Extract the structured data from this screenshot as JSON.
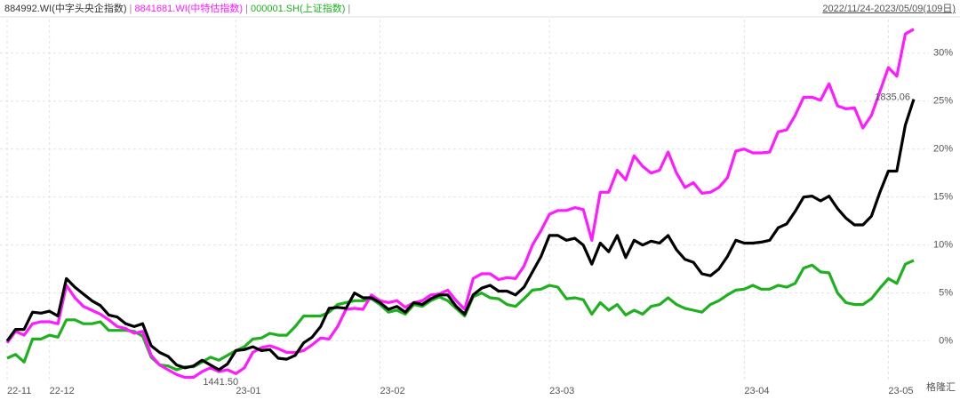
{
  "chart_data": {
    "type": "line",
    "range_label": "2022/11/24-2023/05/09(109日)",
    "separator": "|",
    "categories": [
      "22-11",
      null,
      null,
      null,
      null,
      "22-12",
      null,
      null,
      null,
      null,
      null,
      null,
      null,
      null,
      null,
      null,
      null,
      null,
      null,
      null,
      null,
      null,
      null,
      null,
      null,
      null,
      null,
      "23-01",
      null,
      null,
      null,
      null,
      null,
      null,
      null,
      null,
      null,
      null,
      null,
      null,
      null,
      null,
      null,
      null,
      "23-02",
      null,
      null,
      null,
      null,
      null,
      null,
      null,
      null,
      null,
      null,
      null,
      null,
      null,
      null,
      null,
      null,
      null,
      null,
      null,
      "23-03",
      null,
      null,
      null,
      null,
      null,
      null,
      null,
      null,
      null,
      null,
      null,
      null,
      null,
      null,
      null,
      null,
      null,
      null,
      null,
      null,
      null,
      null,
      "23-04",
      null,
      null,
      null,
      null,
      null,
      null,
      null,
      null,
      null,
      null,
      null,
      null,
      null,
      null,
      null,
      null,
      "23-05",
      null,
      null,
      null
    ],
    "series": [
      {
        "name": "884992.WI(中字头央企指数)",
        "color": "#000000",
        "values": [
          0,
          1.2,
          1.2,
          3.0,
          2.9,
          3.1,
          2.6,
          6.5,
          5.6,
          4.9,
          4.2,
          3.7,
          2.7,
          2.5,
          1.8,
          1.5,
          1.8,
          -0.5,
          -1.2,
          -1.6,
          -2.5,
          -2.8,
          -2.6,
          -2.0,
          -2.5,
          -3.0,
          -2.4,
          -1.0,
          -0.9,
          -0.6,
          -1.0,
          -0.9,
          -1.8,
          -1.9,
          -1.5,
          -0.2,
          0.4,
          1.5,
          3.4,
          3.5,
          3.4,
          5.0,
          4.5,
          4.5,
          4.0,
          3.3,
          3.6,
          3.0,
          4.0,
          3.8,
          4.4,
          4.8,
          4.8,
          3.6,
          2.8,
          4.8,
          5.5,
          5.8,
          5.2,
          5.2,
          4.8,
          5.6,
          7.2,
          8.8,
          11.0,
          11.0,
          10.5,
          10.7,
          10.0,
          8.0,
          10.2,
          9.3,
          11.0,
          8.7,
          10.5,
          10.0,
          10.4,
          10.2,
          11.0,
          9.5,
          8.5,
          8.2,
          7.0,
          6.8,
          7.5,
          8.8,
          10.5,
          10.2,
          10.2,
          10.3,
          10.5,
          11.8,
          12.2,
          13.5,
          15.0,
          15.1,
          14.6,
          15.1,
          13.8,
          12.8,
          12.1,
          12.1,
          13.0,
          15.5,
          17.7,
          17.7,
          22.5,
          25.2
        ]
      },
      {
        "name": "8841681.WI(中特估指数)",
        "color": "#ff1aff",
        "values": [
          -0.2,
          1.0,
          0.6,
          1.8,
          2.0,
          2.0,
          1.8,
          5.8,
          4.5,
          3.6,
          3.2,
          2.8,
          2.2,
          1.5,
          1.3,
          0.8,
          1.0,
          -1.5,
          -2.5,
          -3.0,
          -3.5,
          -3.8,
          -3.8,
          -3.2,
          -2.8,
          -3.2,
          -3.0,
          -3.4,
          -2.8,
          -1.2,
          -0.7,
          -0.5,
          -0.8,
          -1.2,
          -1.2,
          -1.0,
          -0.4,
          0.3,
          0.2,
          1.5,
          3.3,
          3.4,
          3.3,
          4.8,
          4.2,
          4.0,
          4.2,
          3.5,
          4.0,
          4.2,
          4.8,
          4.9,
          5.3,
          4.2,
          3.3,
          6.5,
          7.0,
          7.0,
          6.4,
          6.6,
          6.5,
          7.8,
          10.0,
          11.5,
          13.2,
          13.6,
          13.6,
          13.9,
          13.7,
          10.5,
          15.5,
          15.5,
          17.8,
          16.8,
          19.3,
          18.2,
          17.5,
          17.8,
          19.7,
          17.5,
          16.0,
          16.5,
          15.4,
          15.5,
          16.0,
          17.0,
          19.8,
          20.0,
          19.6,
          19.6,
          19.7,
          21.8,
          22.0,
          23.5,
          25.4,
          25.4,
          25.1,
          26.8,
          24.5,
          24.2,
          24.3,
          22.2,
          23.5,
          26.0,
          28.5,
          27.6,
          32.0,
          32.5
        ]
      },
      {
        "name": "000001.SH(上证指数)",
        "color": "#1fb01f",
        "values": [
          -1.8,
          -1.4,
          -2.2,
          0.2,
          0.2,
          0.6,
          0.4,
          2.2,
          2.2,
          1.8,
          1.8,
          2.0,
          1.1,
          1.1,
          1.1,
          1.0,
          0.5,
          -1.7,
          -2.5,
          -2.6,
          -3.0,
          -2.7,
          -2.7,
          -2.2,
          -1.7,
          -2.0,
          -1.5,
          -1.0,
          -0.6,
          0.2,
          0.3,
          0.8,
          0.6,
          0.6,
          1.5,
          2.6,
          2.6,
          2.6,
          3.0,
          3.8,
          4.0,
          4.2,
          4.2,
          4.4,
          3.8,
          3.0,
          3.2,
          2.8,
          3.8,
          3.6,
          4.2,
          4.6,
          4.2,
          3.4,
          2.6,
          4.6,
          5.0,
          4.5,
          4.4,
          3.8,
          3.6,
          4.4,
          5.3,
          5.4,
          5.8,
          5.6,
          4.4,
          4.5,
          4.3,
          2.8,
          4.0,
          3.2,
          3.8,
          2.7,
          3.2,
          2.8,
          3.6,
          3.8,
          4.5,
          3.8,
          3.4,
          3.2,
          3.0,
          3.8,
          4.2,
          4.8,
          5.3,
          5.4,
          5.8,
          5.4,
          5.4,
          5.8,
          5.6,
          6.0,
          7.6,
          7.9,
          7.2,
          7.1,
          5.0,
          4.0,
          3.8,
          3.8,
          4.4,
          5.5,
          6.5,
          6.0,
          8.0,
          8.4
        ]
      }
    ],
    "annotations": [
      {
        "text": "1835.06",
        "color": "#cc2222"
      },
      {
        "text": "1441.50",
        "color": "#555555"
      }
    ],
    "watermark": "格隆汇",
    "ylim": [
      -4.3,
      33.5
    ],
    "yticks": [
      {
        "value": 0,
        "label": "0%"
      },
      {
        "value": 5,
        "label": "5%"
      },
      {
        "value": 10,
        "label": "10%"
      },
      {
        "value": 15,
        "label": "15%"
      },
      {
        "value": 20,
        "label": "20%"
      },
      {
        "value": 25,
        "label": "25%"
      },
      {
        "value": 30,
        "label": "30%"
      }
    ],
    "grid": true
  }
}
